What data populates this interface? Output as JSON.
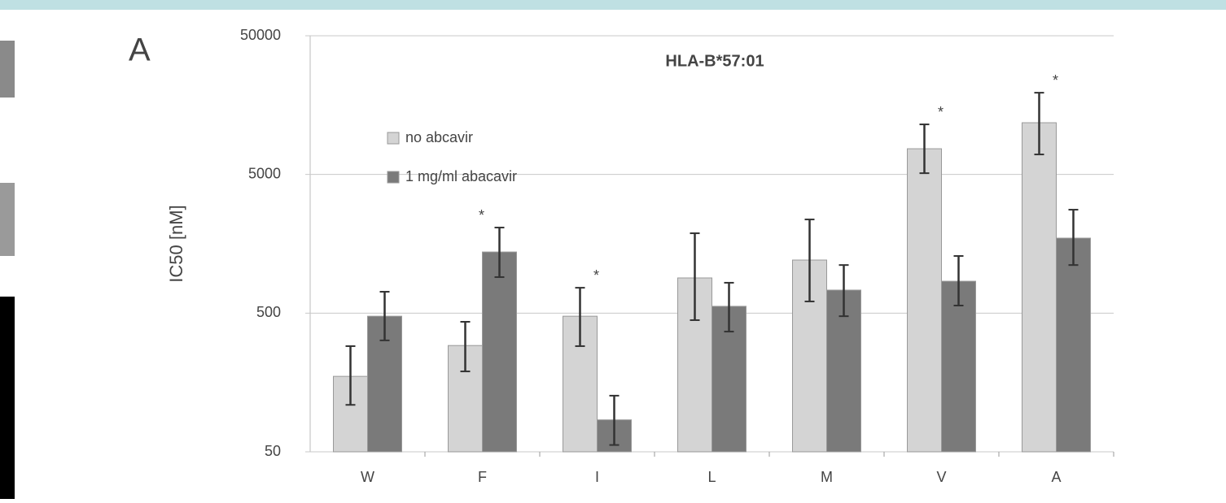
{
  "chart_data": {
    "type": "bar",
    "panel_label": "A",
    "title": "HLA-B*57:01",
    "ylabel": "IC50 [nM]",
    "categories": [
      "W",
      "F",
      "I",
      "L",
      "M",
      "V",
      "A"
    ],
    "log_scale": true,
    "ylim": [
      50,
      50000
    ],
    "yticks": [
      50,
      500,
      5000,
      50000
    ],
    "grid": true,
    "legend": "upper left",
    "series": [
      {
        "name": "no abcavir",
        "color": "#d4d4d4",
        "values": [
          175,
          292,
          475,
          897,
          1207,
          7660,
          11800
        ],
        "upper": [
          289,
          433,
          762,
          1883,
          2368,
          11480,
          19420
        ],
        "lower": [
          109,
          190,
          289,
          445,
          607,
          5105,
          6970
        ]
      },
      {
        "name": "1 mg/ml abacavir",
        "color": "#7a7a7a",
        "values": [
          475,
          1380,
          85,
          560,
          733,
          849,
          1737
        ],
        "upper": [
          713,
          2070,
          127,
          828,
          1111,
          1291,
          2785
        ],
        "lower": [
          318,
          909,
          56,
          368,
          475,
          567,
          1111
        ]
      }
    ],
    "annotations": [
      {
        "text": "*",
        "category": "F"
      },
      {
        "text": "*",
        "category": "I"
      },
      {
        "text": "*",
        "category": "V"
      },
      {
        "text": "*",
        "category": "A"
      }
    ]
  }
}
